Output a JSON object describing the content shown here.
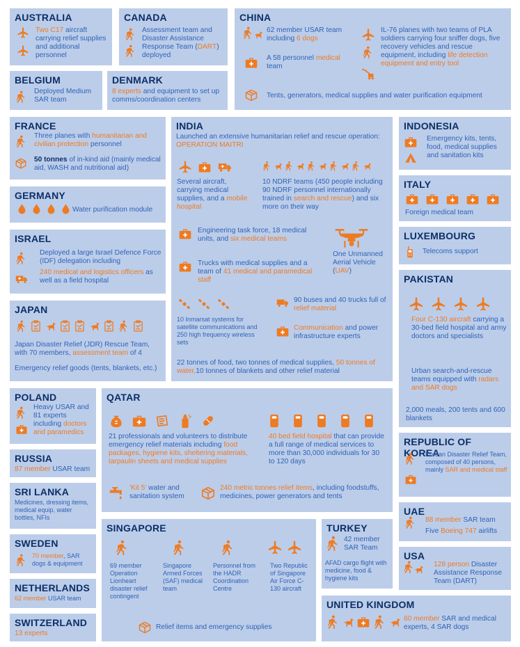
{
  "australia": {
    "title": "AUSTRALIA",
    "p1": "Two C17",
    "p2": " aircraft carrying relief supplies and additional personnel"
  },
  "canada": {
    "title": "CANADA",
    "p1": "Assessment team and Disaster Assistance Response Team (",
    "p2": "DART",
    "p3": ") deployed"
  },
  "china": {
    "title": "CHINA",
    "usar1": "62 member USAR team including ",
    "usar2": "6 dogs",
    "med1": "A 58 personnel ",
    "med2": "medical",
    "med3": " team",
    "il1": "IL-76 planes with two teams of PLA soldiers carrying four sniffer dogs, five recovery vehicles and rescue equipment, including ",
    "il2": "life detection equipment and",
    "il3": " entry tool",
    "tents": "Tents, generators, medical supplies and water purification equipment"
  },
  "belgium": {
    "title": "BELGIUM",
    "p1": "Deployed Medium SAR team"
  },
  "denmark": {
    "title": "DENMARK",
    "p1": "8 experts",
    "p2": " and equipment to set up comms/coordination centers"
  },
  "france": {
    "title": "FRANCE",
    "p1": "Three planes with ",
    "p2": "humanitarian and civilian protection",
    "p3": " personnel",
    "q1": "50 tonnes",
    "q2": " of in-kind aid (mainly medical aid, WASH and nutritional aid)"
  },
  "india": {
    "title": "INDIA",
    "intro": "Launched an extensive humanitarian relief and rescue operation:",
    "op": "OPERATION MAITRI",
    "air1": "Several aircraft, carrying medical supplies, and a ",
    "air2": "mobile hospital",
    "ndrf1": "10 NDRF teams (450 people including 90 NDRF personnel internationally trained in ",
    "ndrf2": "search and rescue",
    "ndrf3": ") and six more on their way",
    "eng1": "Engineering task force, 18 medical units, and ",
    "eng2": "six medical teams",
    "uav1": "One Unmanned Aerial Vehicle (",
    "uav2": "UAV",
    "uav3": ")",
    "truck1": "Trucks with medical supplies and a team of ",
    "truck2": "41 medical and paramedical staff",
    "sat": "10 Inmarsat systems for satellite communications and 250 high frequency wireless sets",
    "bus1": "90 buses and 40 trucks full of ",
    "bus2": "relief material",
    "comm1": "Communication",
    "comm2": " and power infrastructure experts",
    "food1": "22 tonnes of food, two tonnes of medical supplies, ",
    "food2": "50 tonnes of water,",
    "food3": "10 tonnes of blankets and other relief material"
  },
  "indonesia": {
    "title": "INDONESIA",
    "p1": "Emergency kits, tents, food, medical supplies and sanitation kits"
  },
  "italy": {
    "title": "ITALY",
    "p1": "Foreign medical team"
  },
  "luxembourg": {
    "title": "LUXEMBOURG",
    "p1": "Telecoms support"
  },
  "pakistan": {
    "title": "PAKISTAN",
    "p1": "Four C-130 aircraft",
    "p2": " carrying a 30-bed field hospital and army doctors and specialists",
    "r1": "Urban search-and-rescue teams equipped with ",
    "r2": "radars and SAR dogs",
    "m1": "2,000 meals, 200 tents and 600 blankets"
  },
  "germany": {
    "title": "GERMANY",
    "p1": "Water purification module"
  },
  "israel": {
    "title": "ISRAEL",
    "p1": "Deployed a large Israel Defence Force (IDF) delegation including",
    "p2": "240 medical and logistics officers",
    "p3": " as well as a field hospital"
  },
  "japan": {
    "title": "JAPAN",
    "p1": "Japan Disaster Relief (JDR) Rescue Team, with 70 members, ",
    "p2": "assessment team",
    "p3": " of 4",
    "p4": "Emergency relief goods (tents, blankets, etc.)"
  },
  "poland": {
    "title": "POLAND",
    "p1": "Heavy USAR and 81 experts including ",
    "p2": "doctors and paramedics"
  },
  "russia": {
    "title": "RUSSIA",
    "p1": "87 member",
    "p2": " USAR team"
  },
  "srilanka": {
    "title": "SRI LANKA",
    "p1": "Medicines, dressing items, medical equip, water bottles, NFIs"
  },
  "sweden": {
    "title": "SWEDEN",
    "p1": "70 member",
    "p2": ", SAR dogs & equipment"
  },
  "netherlands": {
    "title": "NETHERLANDS",
    "p1": "62 member",
    "p2": " USAR team"
  },
  "switzerland": {
    "title": "SWITZERLAND",
    "p1": "13 experts"
  },
  "qatar": {
    "title": "QATAR",
    "p1": "21 professionals and volunteers to distribute emergency relief materials including ",
    "p2": "food packages, hygiene kits, sheltering materials, tarpaulin sheets and medical supplies",
    "h1": "40 bed field hospital",
    "h2": " that can provide a full range of medical services to more than 30,000 individuals for 30 to 120 days",
    "k1": "'Kit 5'",
    "k2": " water and sanitation system",
    "t1": "240 metric tonnes relief items",
    "t2": ", including foodstuffs, medicines, power generators and tents"
  },
  "singapore": {
    "title": "SINGAPORE",
    "c1": "69 member Operation Lionheart disaster relief contingent",
    "c2": "Singapore Armed Forces (SAF) medical team",
    "c3": "Personnel from the HADR Coordination Centre",
    "c4": "Two Republic of Singapore Air Force C-130 aircraft",
    "relief": "Relief items and emergency supplies"
  },
  "turkey": {
    "title": "TURKEY",
    "p1": "42 member SAR Team",
    "p2": "AFAD cargo flight with medicine, food & hygiene kits"
  },
  "korea": {
    "title": "REPUBLIC OF KOREA",
    "p1": "Korean Disaster Relief Team, composed of 40 persons, mainly ",
    "p2": "SAR and medical staff"
  },
  "uae": {
    "title": "UAE",
    "p1": "88 member",
    "p2": " SAR team",
    "p3": "Five ",
    "p4": "Boeing 747",
    "p5": " airlifts"
  },
  "usa": {
    "title": "USA",
    "p1": "128 person",
    "p2": " Disaster Assistance Response Team (DART)"
  },
  "uk": {
    "title": "UNITED KINGDOM",
    "p1": "60 member",
    "p2": " SAR and medical experts, 4 SAR dogs"
  },
  "colors": {
    "card": "#bccdea",
    "title": "#0c2f66",
    "text": "#2f63b4",
    "accent": "#ee7b22"
  }
}
